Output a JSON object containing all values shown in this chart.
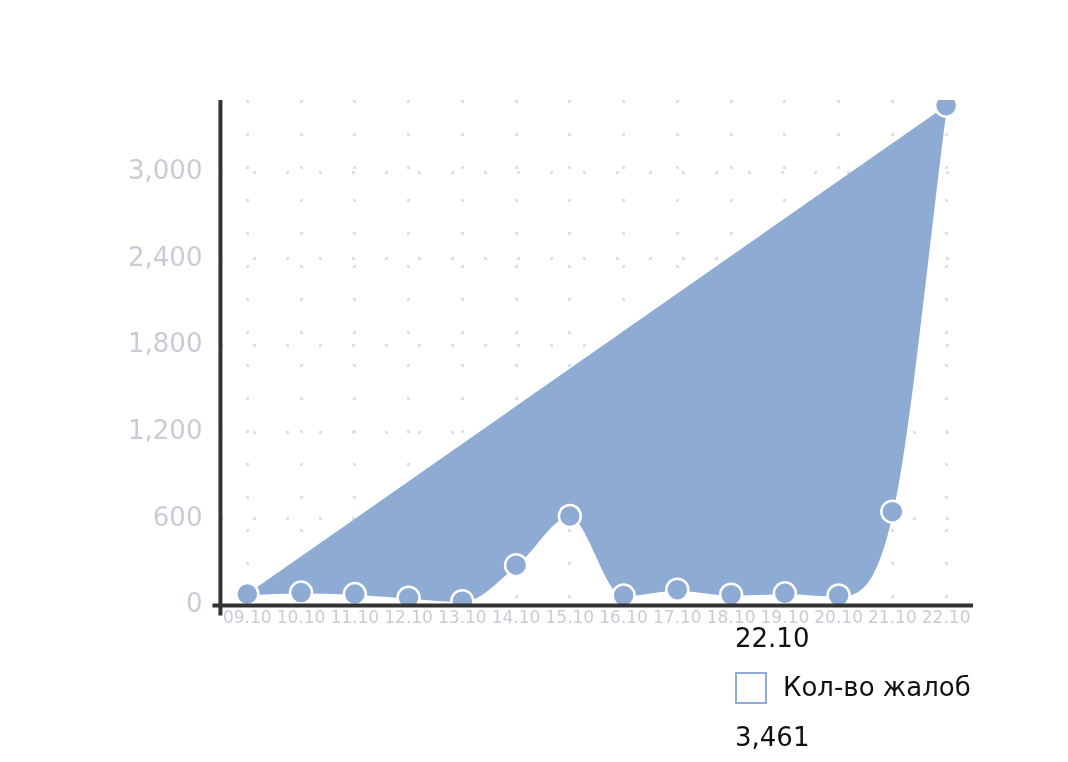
{
  "chart_data": {
    "type": "area",
    "categories": [
      "09.10",
      "10.10",
      "11.10",
      "12.10",
      "13.10",
      "14.10",
      "15.10",
      "16.10",
      "17.10",
      "18.10",
      "19.10",
      "20.10",
      "21.10",
      "22.10"
    ],
    "series": [
      {
        "name": "Кол-во жалоб",
        "color": "#8eabd4",
        "values": [
          80,
          90,
          80,
          55,
          30,
          280,
          620,
          70,
          110,
          75,
          85,
          70,
          650,
          3461
        ]
      }
    ],
    "annotations": [
      "3,461"
    ],
    "ylim": [
      0,
      3500
    ],
    "yticks": [
      0,
      600,
      {
        "value": 1200,
        "label": "1,200"
      },
      {
        "value": 1800,
        "label": "1,800"
      },
      {
        "value": 2400,
        "label": "2,400"
      },
      {
        "value": 3000,
        "label": "3,000"
      }
    ],
    "grid": true,
    "legend": "bottom right",
    "marker": "circle"
  }
}
